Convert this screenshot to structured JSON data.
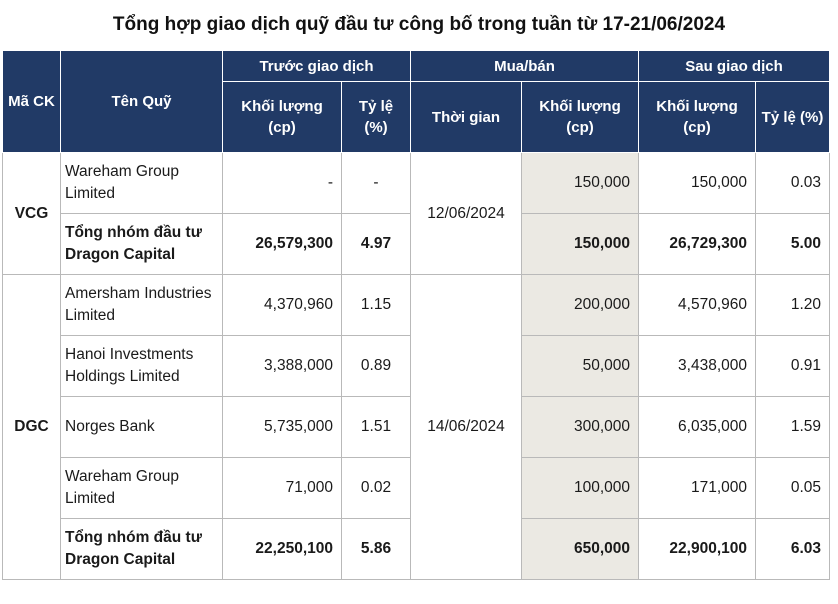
{
  "title": "Tổng hợp giao dịch quỹ đầu tư công bố trong tuần từ 17-21/06/2024",
  "header": {
    "code": "Mã CK",
    "fund_name": "Tên Quỹ",
    "before": "Trước giao dịch",
    "trade": "Mua/bán",
    "after": "Sau giao dịch",
    "volume": "Khối lượng (cp)",
    "ratio": "Tỷ lệ (%)",
    "time": "Thời gian"
  },
  "groups": [
    {
      "code": "VCG",
      "date": "12/06/2024",
      "rows": [
        {
          "fund": "Wareham Group Limited",
          "before_vol": "-",
          "before_pct": "-",
          "trade_vol": "150,000",
          "after_vol": "150,000",
          "after_pct": "0.03"
        },
        {
          "fund": "Tổng nhóm đầu tư Dragon Capital",
          "before_vol": "26,579,300",
          "before_pct": "4.97",
          "trade_vol": "150,000",
          "after_vol": "26,729,300",
          "after_pct": "5.00"
        }
      ]
    },
    {
      "code": "DGC",
      "date": "14/06/2024",
      "rows": [
        {
          "fund": "Amersham Industries Limited",
          "before_vol": "4,370,960",
          "before_pct": "1.15",
          "trade_vol": "200,000",
          "after_vol": "4,570,960",
          "after_pct": "1.20"
        },
        {
          "fund": "Hanoi Investments Holdings Limited",
          "before_vol": "3,388,000",
          "before_pct": "0.89",
          "trade_vol": "50,000",
          "after_vol": "3,438,000",
          "after_pct": "0.91"
        },
        {
          "fund": "Norges Bank",
          "before_vol": "5,735,000",
          "before_pct": "1.51",
          "trade_vol": "300,000",
          "after_vol": "6,035,000",
          "after_pct": "1.59"
        },
        {
          "fund": "Wareham Group Limited",
          "before_vol": "71,000",
          "before_pct": "0.02",
          "trade_vol": "100,000",
          "after_vol": "171,000",
          "after_pct": "0.05"
        },
        {
          "fund": "Tổng nhóm đầu tư Dragon Capital",
          "before_vol": "22,250,100",
          "before_pct": "5.86",
          "trade_vol": "650,000",
          "after_vol": "22,900,100",
          "after_pct": "6.03"
        }
      ]
    }
  ]
}
